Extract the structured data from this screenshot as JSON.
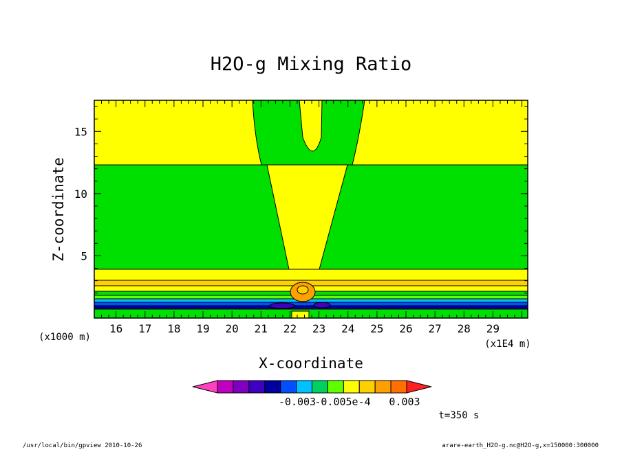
{
  "chart_data": {
    "type": "heatmap",
    "title": "H2O-g Mixing Ratio",
    "xlabel": "X-coordinate",
    "ylabel": "Z-coordinate",
    "x_unit": "(x1E4 m)",
    "y_unit": "(x1000 m)",
    "xlim": [
      15.25,
      30.2
    ],
    "ylim": [
      0,
      17.5
    ],
    "x_ticks": [
      "16",
      "17",
      "18",
      "19",
      "20",
      "21",
      "22",
      "23",
      "24",
      "25",
      "26",
      "27",
      "28",
      "29"
    ],
    "y_ticks": [
      "5",
      "10",
      "15"
    ],
    "colorbar": {
      "colors": [
        "#ff40c0",
        "#c000c0",
        "#8000c0",
        "#4000c0",
        "#0000a0",
        "#0050ff",
        "#00c0ff",
        "#00d060",
        "#60ff00",
        "#ffff00",
        "#ffd000",
        "#ffa000",
        "#ff7000",
        "#ff2020"
      ],
      "labels": [
        "-0.003",
        "-0.005e-4",
        "0.003"
      ]
    },
    "regions": [
      {
        "name": "upper-yellow-band",
        "x": [
          15.25,
          30.2
        ],
        "z": [
          12.5,
          17.5
        ],
        "color": "#ffff00"
      },
      {
        "name": "upper-green-plume",
        "x": [
          20.8,
          24.0
        ],
        "z": [
          12.5,
          17.5
        ],
        "color": "#00e000"
      },
      {
        "name": "middle-green-layer",
        "x": [
          15.25,
          30.2
        ],
        "z": [
          4.0,
          12.5
        ],
        "color": "#00e000"
      },
      {
        "name": "central-yellow-column",
        "x": [
          21.0,
          23.8
        ],
        "z": [
          2.5,
          12.5
        ],
        "color": "#ffff00"
      },
      {
        "name": "low-level-banded-layer",
        "x": [
          15.25,
          30.2
        ],
        "z": [
          0.0,
          4.0
        ],
        "color": "#0000a0"
      }
    ],
    "time_label": "t=350 s"
  },
  "footer": {
    "left": "/usr/local/bin/gpview  2010-10-26",
    "right": "arare-earth_H2O-g.nc@H2O-g,x=150000:300000"
  }
}
